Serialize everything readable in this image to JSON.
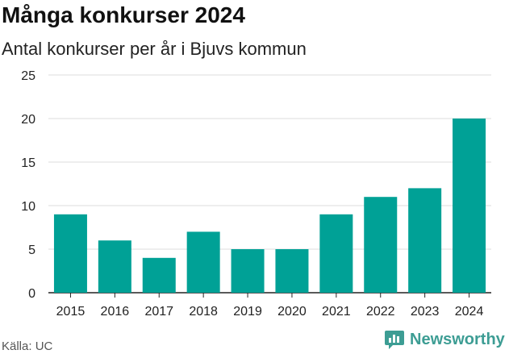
{
  "header": {
    "title": "Många konkurser 2024",
    "subtitle": "Antal konkurser per år i Bjuvs kommun"
  },
  "footer": {
    "source": "Källa: UC",
    "brand": "Newsworthy",
    "brand_icon": "newsworthy-logo-icon"
  },
  "colors": {
    "bar": "#00a196",
    "grid": "#dddddd",
    "axis": "#222222",
    "brand": "#3d9d94"
  },
  "chart_data": {
    "type": "bar",
    "title": "Många konkurser 2024",
    "subtitle": "Antal konkurser per år i Bjuvs kommun",
    "categories": [
      "2015",
      "2016",
      "2017",
      "2018",
      "2019",
      "2020",
      "2021",
      "2022",
      "2023",
      "2024"
    ],
    "values": [
      9,
      6,
      4,
      7,
      5,
      5,
      9,
      11,
      12,
      20
    ],
    "ylim": [
      0,
      25
    ],
    "yticks": [
      0,
      5,
      10,
      15,
      20,
      25
    ],
    "xlabel": "",
    "ylabel": "",
    "grid": true,
    "legend": "none"
  }
}
